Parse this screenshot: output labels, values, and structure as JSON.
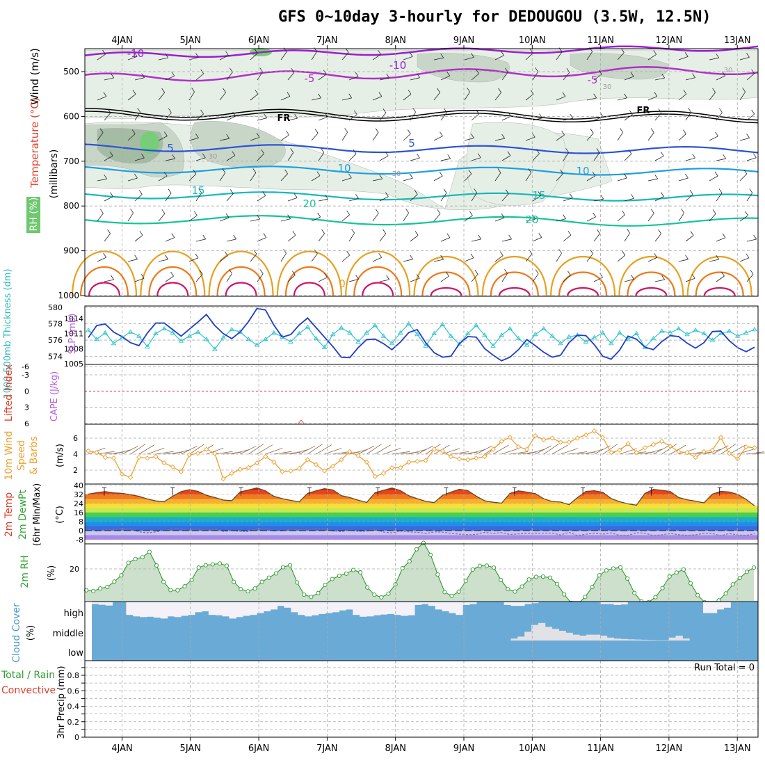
{
  "chart_data": {
    "type": "meteogram",
    "title": "GFS 0~10day 3-hourly for DEDOUGOU (3.5W, 12.5N)",
    "dates": [
      "4JAN",
      "5JAN",
      "6JAN",
      "7JAN",
      "8JAN",
      "9JAN",
      "10JAN",
      "11JAN",
      "12JAN",
      "13JAN"
    ],
    "panels": {
      "upper": {
        "ylabel": "(millibars)",
        "labels": [
          "Wind (m/s)",
          "Temperature (°C)",
          "RH (%)"
        ],
        "yticks": [
          500,
          600,
          700,
          800,
          900,
          1000
        ],
        "freezing_label": "FR",
        "contour_labels": [
          "-10",
          "-10",
          "-5",
          "-5",
          "5",
          "5",
          "10",
          "10",
          "15",
          "15",
          "20",
          "20",
          "0",
          "30",
          "30",
          "30",
          "30"
        ]
      },
      "thickness": {
        "ylabel_left": "1000-500mb Thickness (dm)",
        "ylabel_right": "SLP (mb)",
        "yticks_left": [
          "580",
          "578",
          "576",
          "574"
        ],
        "yticks_right": [
          "1014",
          "1011",
          "1008",
          "1005"
        ],
        "thickness_dm": [
          577.2,
          576.1,
          576.9,
          575.6,
          576.3,
          577.0,
          576.5,
          575.2,
          576.8,
          577.4,
          576.9,
          575.9,
          576.5,
          577.0,
          576.1,
          574.9,
          576.3,
          577.3,
          577.0,
          576.1,
          575.4,
          576.1,
          576.9,
          576.4,
          575.8,
          576.8,
          577.6,
          576.2,
          575.1,
          576.7,
          577.5,
          576.9,
          575.8,
          576.9,
          577.8,
          576.5,
          575.6,
          576.9,
          578.0,
          576.7,
          575.3,
          576.8,
          577.9,
          576.5,
          575.5,
          576.8,
          577.8,
          576.6,
          575.3,
          576.6,
          577.4,
          576.2,
          575.4,
          576.7,
          577.4,
          576.5,
          575.6,
          576.4,
          576.6,
          575.8,
          576.3,
          576.9,
          575.6,
          576.9,
          576.1,
          576.8,
          575.1,
          576.2,
          577.1,
          576.9,
          577.4,
          576.7,
          577.2,
          576.8,
          576.0,
          576.8,
          577.1,
          576.5,
          576.9,
          577.3
        ],
        "slp_mb": [
          1010.2,
          1012.6,
          1012.9,
          1011.3,
          1010.4,
          1009.2,
          1008.6,
          1011.1,
          1013.1,
          1013.1,
          1011.8,
          1010.5,
          1011.9,
          1013.3,
          1014.8,
          1012.6,
          1011.0,
          1010.0,
          1011.3,
          1013.4,
          1016.0,
          1015.7,
          1012.7,
          1010.3,
          1010.8,
          1012.7,
          1014.1,
          1012.2,
          1010.3,
          1008.4,
          1006.3,
          1006.2,
          1008.2,
          1009.8,
          1009.9,
          1009.0,
          1007.8,
          1009.3,
          1011.2,
          1011.8,
          1009.2,
          1007.2,
          1006.3,
          1006.5,
          1009.0,
          1010.4,
          1010.3,
          1008.0,
          1006.7,
          1005.6,
          1006.3,
          1007.8,
          1009.8,
          1008.6,
          1007.3,
          1006.3,
          1006.7,
          1009.2,
          1010.7,
          1010.6,
          1008.8,
          1006.5,
          1005.9,
          1007.7,
          1010.5,
          1009.9,
          1008.3,
          1007.8,
          1009.4,
          1010.6,
          1010.4,
          1009.1,
          1008.1,
          1009.2,
          1011.4,
          1011.5,
          1009.6,
          1008.2,
          1007.4,
          1008.3
        ]
      },
      "stability": {
        "ylabel_left": "Lifted Index",
        "ylabel_right": "CAPE (J/kg)",
        "yticks": [
          "-6",
          "-3",
          "0",
          "3",
          "6"
        ]
      },
      "wind10m": {
        "ylabel": "10m Wind Speed & Barbs (m/s)",
        "yticks": [
          "2",
          "4",
          "6"
        ],
        "speed_ms": [
          4.4,
          4.2,
          3.6,
          3.5,
          1.5,
          1.1,
          3.6,
          3.5,
          3.7,
          2.9,
          2.4,
          1.8,
          3.9,
          4.1,
          4.6,
          4.1,
          0.9,
          1.6,
          2.1,
          2.3,
          2.9,
          3.7,
          3.0,
          1.8,
          1.9,
          2.2,
          3.3,
          2.7,
          1.9,
          2.5,
          3.3,
          4.3,
          3.8,
          3.0,
          1.2,
          1.6,
          2.3,
          2.3,
          3.0,
          3.1,
          3.2,
          4.6,
          4.4,
          3.7,
          3.4,
          3.3,
          3.5,
          3.7,
          4.6,
          5.6,
          6.1,
          4.9,
          4.6,
          6.3,
          5.8,
          6.0,
          5.5,
          5.5,
          6.0,
          6.4,
          6.9,
          6.1,
          4.2,
          4.5,
          5.3,
          4.2,
          4.8,
          5.2,
          5.6,
          5.0,
          4.3,
          4.2,
          3.6,
          4.3,
          4.5,
          6.1,
          4.1,
          3.4,
          4.9,
          4.8
        ]
      },
      "temp2m": {
        "ylabel": "2m Temp 2m DewPt (6hr Min/Max) (°C)",
        "yticks": [
          "40",
          "32",
          "24",
          "16",
          "8",
          "0",
          "-8"
        ],
        "temp_c": [
          32.3,
          33.6,
          34.5,
          33.4,
          33.0,
          31.8,
          30.4,
          28.0,
          26.3,
          25.6,
          30.4,
          34.5,
          36.2,
          34.8,
          31.3,
          29.3,
          27.1,
          26.5,
          34.2,
          36.0,
          37.8,
          35.2,
          30.4,
          28.3,
          26.8,
          25.4,
          32.9,
          35.2,
          37.1,
          36.0,
          31.0,
          29.3,
          26.9,
          24.9,
          33.6,
          35.7,
          37.7,
          35.5,
          30.9,
          28.3,
          25.9,
          24.8,
          31.2,
          34.1,
          36.6,
          35.4,
          30.5,
          26.4,
          25.1,
          24.3,
          32.9,
          35.2,
          34.1,
          32.8,
          28.2,
          25.8,
          25.3,
          23.0,
          29.2,
          34.7,
          35.3,
          33.9,
          28.4,
          25.6,
          23.7,
          22.5,
          33.0,
          36.5,
          35.7,
          34.6,
          29.3,
          27.3,
          26.1,
          24.6,
          32.3,
          34.8,
          34.2,
          32.1,
          27.6,
          21.9
        ],
        "dewpt_c": [
          1.2,
          -0.4,
          0.6,
          1.0,
          1.8,
          1.5,
          -1.0,
          -1.9,
          -1.1,
          0.4,
          1.4,
          1.6,
          0.2,
          1.6,
          0.5,
          1.4,
          -0.6,
          0.0,
          -0.6,
          -0.8,
          1.7,
          1.7,
          -0.3,
          0.0,
          1.1,
          0.8,
          0.6,
          2.1,
          1.7,
          -0.4,
          -0.8,
          0.3,
          -0.6,
          -0.5,
          1.2,
          -1.2,
          -2.0,
          -0.4,
          -1.1,
          -1.4,
          -2.5,
          -1.1,
          -1.3,
          -2.4,
          -3.1,
          -3.6,
          -3.4,
          -1.5,
          -2.4,
          -1.8,
          -3.4,
          -2.9,
          -2.5,
          -2.4,
          -2.3,
          -2.1,
          -3.9,
          -1.5,
          -4.4,
          -3.2,
          -2.2,
          -3.1,
          -2.0,
          -4.2,
          -4.1,
          -1.9,
          -2.3,
          -4.3,
          -3.7,
          -2.5,
          -3.6,
          -4.1,
          -3.7,
          -2.4,
          -2.6,
          -4.5,
          -2.6,
          -3.8,
          -4.1,
          -2.8
        ]
      },
      "rh2m": {
        "ylabel": "2m RH (%)",
        "ytick": "20",
        "rh_pct": [
          10.1,
          9.7,
          10.9,
          11.6,
          14.1,
          17.0,
          22.8,
          24.6,
          25.4,
          27.9,
          21.6,
          14.0,
          10.2,
          10.1,
          11.9,
          14.9,
          20.6,
          21.7,
          22.1,
          22.5,
          21.5,
          14.0,
          10.6,
          9.6,
          10.9,
          14.0,
          15.9,
          17.9,
          20.8,
          21.7,
          13.7,
          8.0,
          7.0,
          8.8,
          12.6,
          15.3,
          16.8,
          17.8,
          19.5,
          18.4,
          11.4,
          8.0,
          6.8,
          8.5,
          12.8,
          20.3,
          23.5,
          29.1,
          32.1,
          26.5,
          17.4,
          9.2,
          7.5,
          9.4,
          14.4,
          19.7,
          21.4,
          21.5,
          20.6,
          14.9,
          10.6,
          9.5,
          11.8,
          15.1,
          16.3,
          16.4,
          15.9,
          13.0,
          8.2,
          4.2,
          3.9,
          7.0,
          11.6,
          17.0,
          19.3,
          20.2,
          20.7,
          15.5,
          8.8,
          4.9,
          4.5,
          6.9,
          11.1,
          16.5,
          18.3,
          19.7,
          13.3,
          7.8,
          4.5,
          3.3,
          5.4,
          8.6,
          12.8,
          15.8,
          18.6,
          20.6
        ]
      },
      "cloud": {
        "ylabel": "Cloud Cover (%)",
        "levels": [
          "high",
          "middle",
          "low"
        ],
        "high_pct": [
          90,
          86,
          82,
          100,
          100,
          30,
          22,
          18,
          20,
          15,
          10,
          22,
          18,
          25,
          30,
          45,
          50,
          30,
          28,
          22,
          10,
          18,
          25,
          30,
          40,
          50,
          60,
          80,
          70,
          45,
          30,
          22,
          28,
          35,
          40,
          45,
          55,
          60,
          30,
          20,
          22,
          28,
          32,
          35,
          30,
          25,
          28,
          85,
          90,
          80,
          60,
          50,
          40,
          30,
          85,
          90,
          100,
          100,
          100,
          100,
          85,
          80,
          80,
          90,
          95,
          100,
          100,
          100,
          100,
          100,
          100,
          100,
          100,
          100,
          90,
          90,
          85,
          88,
          100,
          100,
          100,
          100,
          100,
          100,
          100,
          100,
          100,
          100,
          100,
          40,
          40,
          60,
          70,
          100,
          100,
          100,
          100
        ],
        "middle_pct": [
          0,
          0,
          0,
          0,
          0,
          0,
          0,
          0,
          0,
          0,
          0,
          0,
          0,
          0,
          0,
          0,
          0,
          0,
          0,
          0,
          0,
          0,
          0,
          0,
          0,
          0,
          0,
          0,
          0,
          0,
          0,
          0,
          0,
          0,
          0,
          0,
          0,
          0,
          0,
          0,
          0,
          0,
          0,
          0,
          0,
          0,
          0,
          0,
          0,
          0,
          0,
          0,
          0,
          0,
          0,
          0,
          0,
          0,
          0,
          0,
          0,
          10,
          20,
          45,
          80,
          90,
          70,
          60,
          50,
          40,
          30,
          25,
          30,
          30,
          25,
          15,
          10,
          8,
          6,
          5,
          4,
          3,
          2,
          2,
          15,
          25,
          10,
          0,
          0,
          0,
          0,
          0,
          0,
          0,
          0,
          0
        ]
      },
      "precip": {
        "ylabel": "3hr Precip (mm)",
        "series_labels": [
          "Total / Rain",
          "Convective"
        ],
        "yticks": [
          "0.8",
          "0.6",
          "0.4",
          "0.2",
          "0"
        ],
        "annotation": "Run Total = 0"
      }
    },
    "colors": {
      "frame": "#000000",
      "grid": "#a9a9a9",
      "rh_light": "#e6efe6",
      "rh_mid": "#c8d6c8",
      "rh_dark": "#a4bca4",
      "rh_green": "#78cd78",
      "t_m10": "#9b1fcf",
      "t_m5": "#b030c8",
      "t_fr": "#000000",
      "t_5": "#2c52d8",
      "t_10": "#1d9fe0",
      "t_15": "#17b8b8",
      "t_20": "#14c49a",
      "t_25": "#e8a020",
      "t_30": "#ee7a1a",
      "t_35": "#d01464",
      "thick": "#2ec4cc",
      "slp": "#1c3ccc",
      "wind_line": "#f0a030",
      "barb": "#8a6a4a",
      "temp_line": "#6b4226",
      "dew_line": "#8b6b8b",
      "rh_line": "#2e9a2e",
      "rh_fill": "#cce0cc",
      "cloud": "#6aaad6",
      "cloud_clear": "#f4f2f8",
      "li_zero": "#e04040",
      "lbl_red": "#e0402a",
      "lbl_orange": "#f0a030",
      "lbl_purple": "#b85ce0",
      "lbl_blue": "#1c3ccc",
      "lbl_cyan": "#2ab8b8",
      "lbl_green": "#2ea02e",
      "lbl_sky": "#4a9ad0"
    }
  }
}
